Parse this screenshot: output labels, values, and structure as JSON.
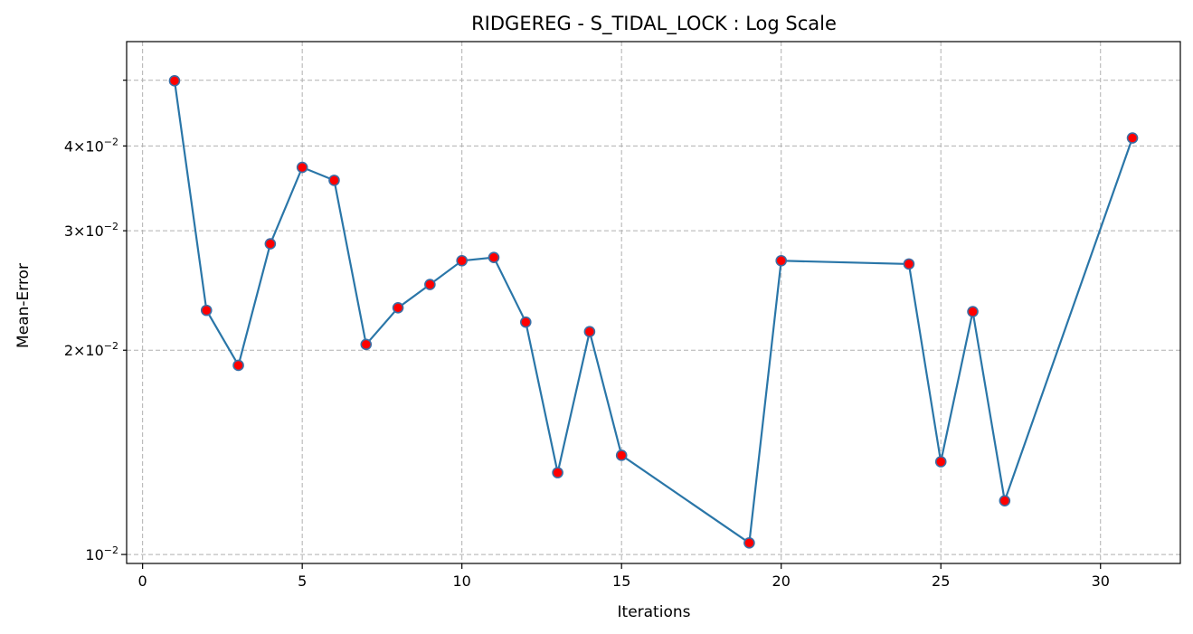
{
  "chart_data": {
    "type": "line",
    "title": "RIDGEREG - S_TIDAL_LOCK : Log Scale",
    "xlabel": "Iterations",
    "ylabel": "Mean-Error",
    "yscale": "log",
    "xlim": [
      -0.5,
      32.5
    ],
    "ylim": [
      0.0097,
      0.057
    ],
    "grid": true,
    "x_ticks": [
      0,
      5,
      10,
      15,
      20,
      25,
      30
    ],
    "x_tick_labels": [
      "0",
      "5",
      "10",
      "15",
      "20",
      "25",
      "30"
    ],
    "y_ticks_major": [
      0.01
    ],
    "y_ticks_major_labels": [
      {
        "base": "10",
        "exp": "−2"
      }
    ],
    "y_ticks_minor": [
      0.02,
      0.03,
      0.04,
      0.05
    ],
    "y_ticks_minor_labels": [
      {
        "mant": "2",
        "base": "10",
        "exp": "−2"
      },
      {
        "mant": "3",
        "base": "10",
        "exp": "−2"
      },
      {
        "mant": "4",
        "base": "10",
        "exp": "−2"
      },
      {
        "mant": "",
        "base": "",
        "exp": ""
      }
    ],
    "line_color": "#2a76a8",
    "marker_color": "#ff0000",
    "marker_edge_color": "#3b6ea5",
    "series": [
      {
        "x": [
          1,
          2,
          3,
          4,
          5,
          6,
          7,
          8,
          9,
          10,
          11,
          12,
          13,
          14,
          15,
          19,
          20,
          24,
          25,
          26,
          27,
          31
        ],
        "y": [
          0.0499,
          0.0229,
          0.019,
          0.0287,
          0.0372,
          0.0356,
          0.0204,
          0.0231,
          0.025,
          0.0271,
          0.0274,
          0.022,
          0.0132,
          0.0213,
          0.014,
          0.0104,
          0.0271,
          0.0268,
          0.0137,
          0.0228,
          0.012,
          0.0411
        ]
      }
    ]
  }
}
